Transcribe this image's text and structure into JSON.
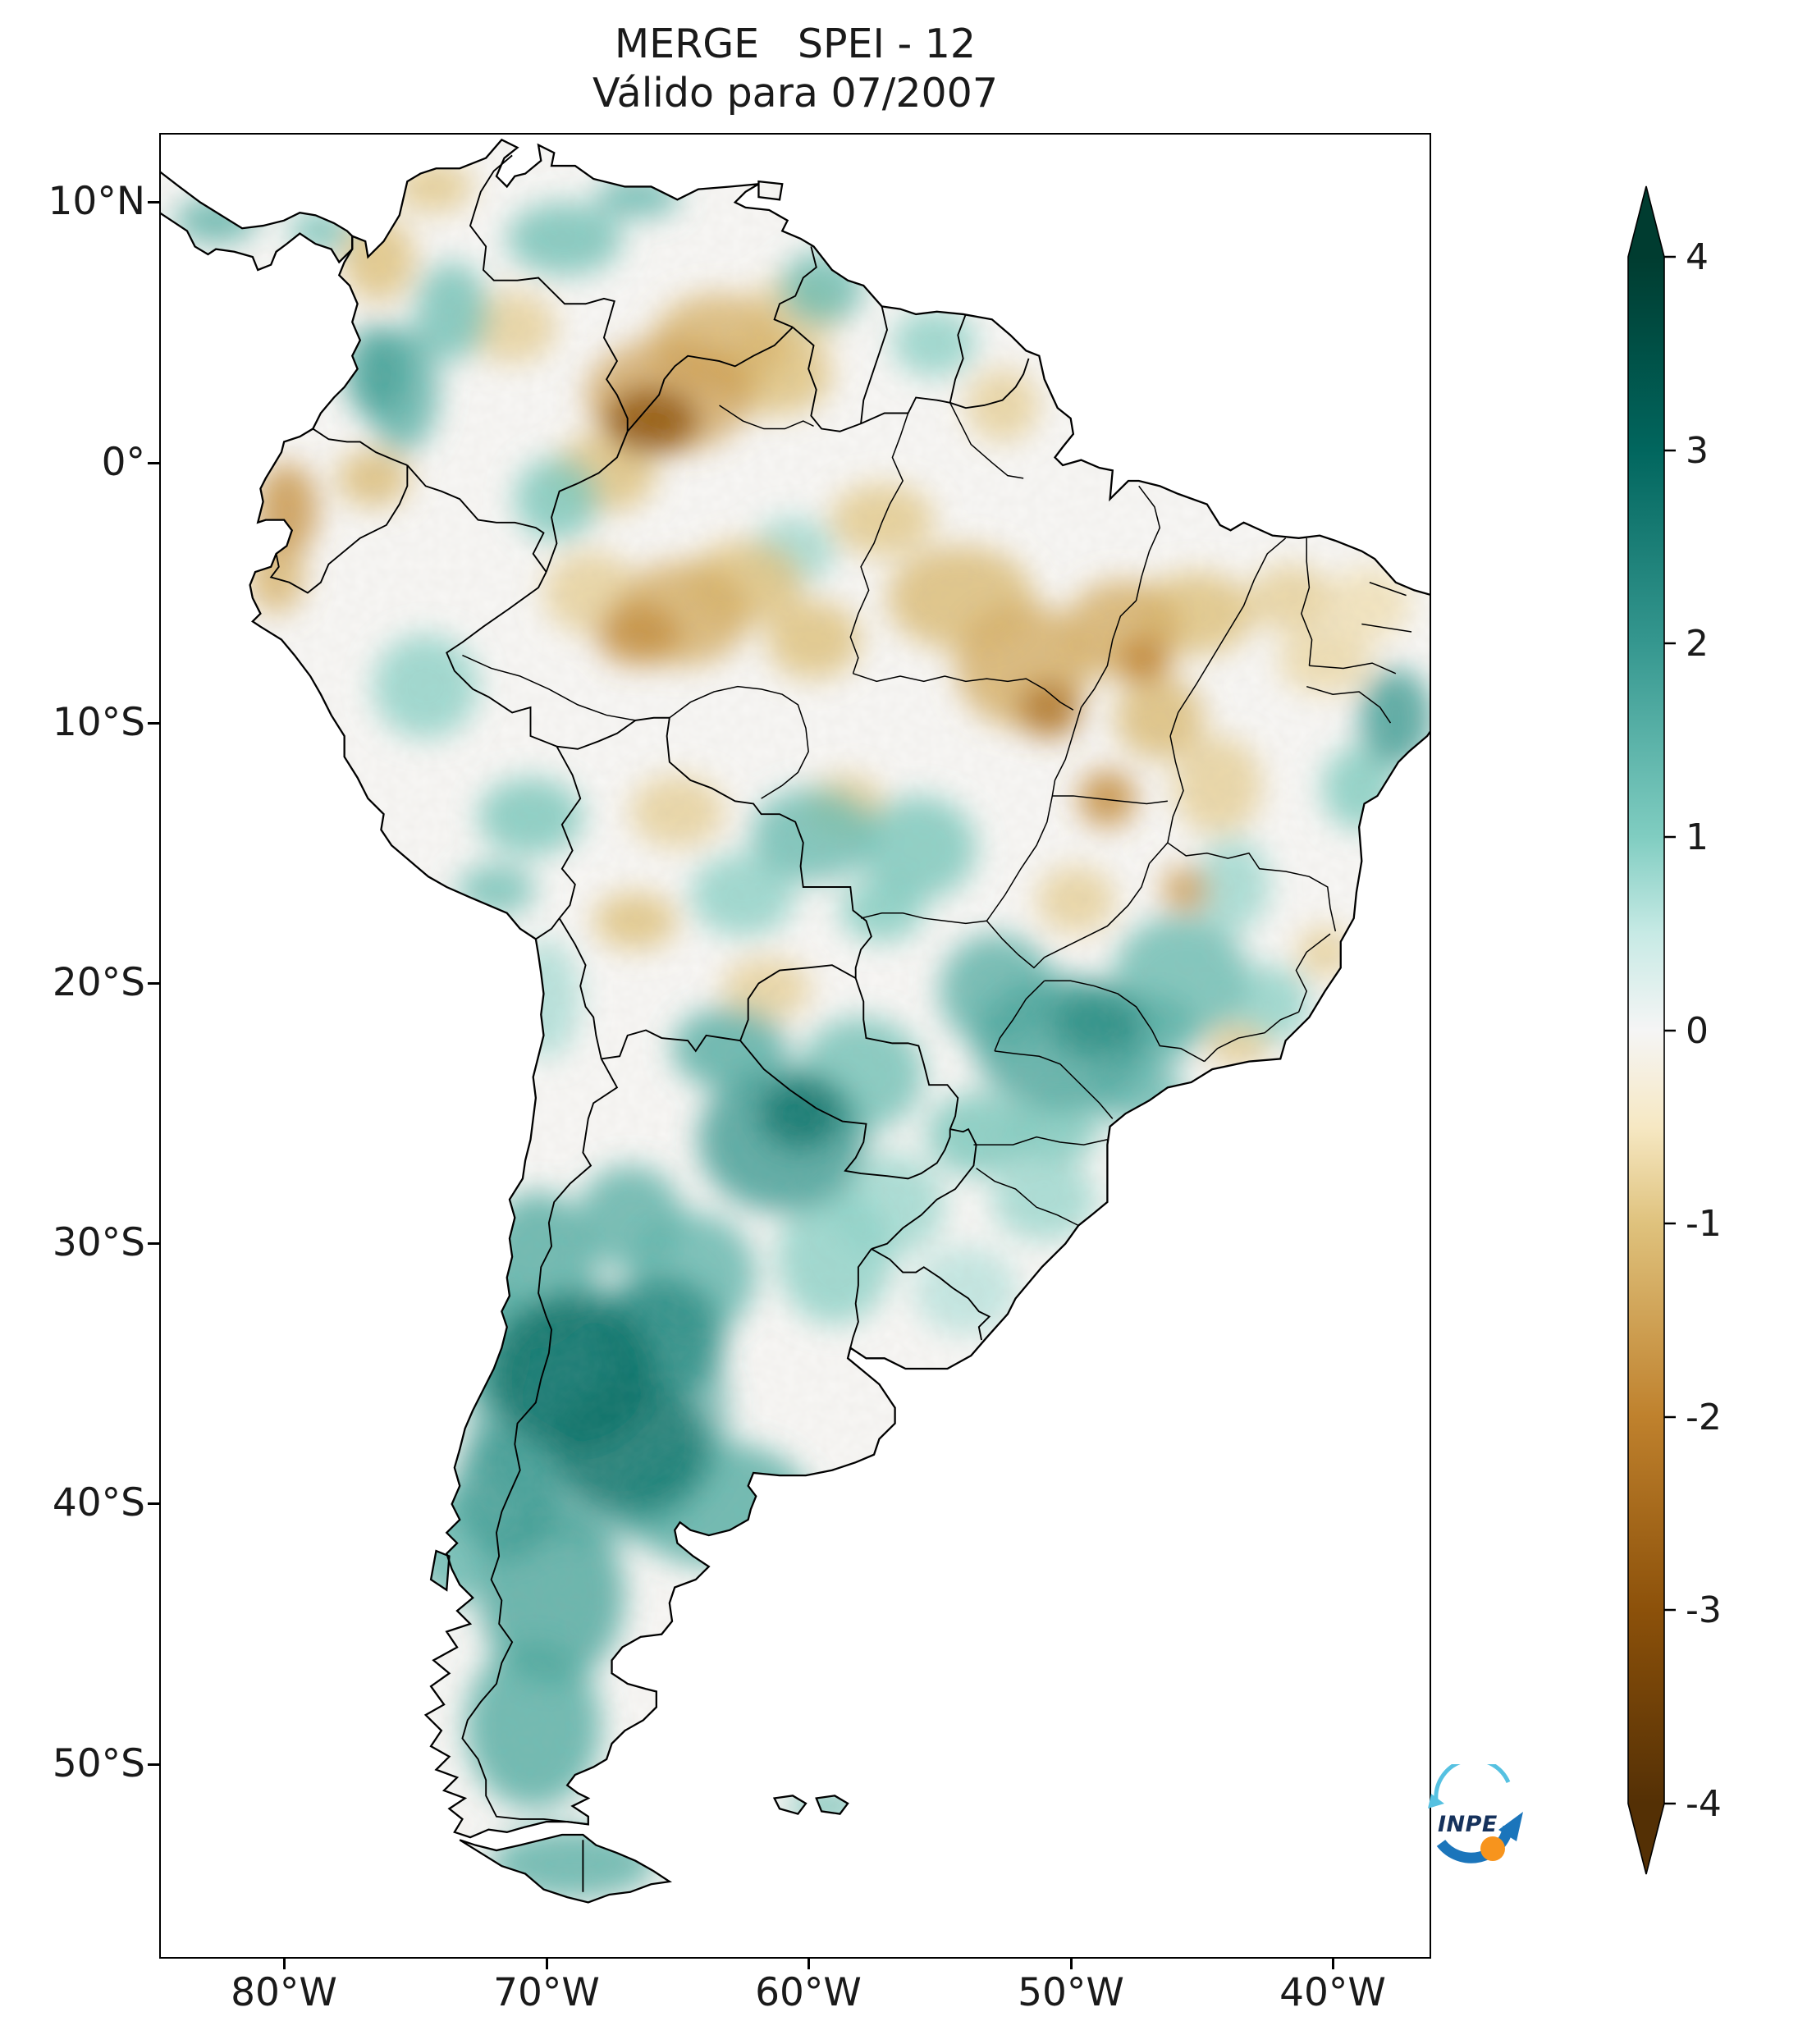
{
  "title": {
    "line1": "MERGE   SPEI - 12",
    "line2": "Válido para 07/2007"
  },
  "axes": {
    "lat_ticks": [
      {
        "label": "10°N"
      },
      {
        "label": "0°"
      },
      {
        "label": "10°S"
      },
      {
        "label": "20°S"
      },
      {
        "label": "30°S"
      },
      {
        "label": "40°S"
      },
      {
        "label": "50°S"
      }
    ],
    "lon_ticks": [
      {
        "label": "80°W"
      },
      {
        "label": "70°W"
      },
      {
        "label": "60°W"
      },
      {
        "label": "50°W"
      },
      {
        "label": "40°W"
      }
    ]
  },
  "colorbar": {
    "extend": "both",
    "ticks": [
      {
        "v": 4,
        "label": "4"
      },
      {
        "v": 3,
        "label": "3"
      },
      {
        "v": 2,
        "label": "2"
      },
      {
        "v": 1,
        "label": "1"
      },
      {
        "v": 0,
        "label": "0"
      },
      {
        "v": -1,
        "label": "-1"
      },
      {
        "v": -2,
        "label": "-2"
      },
      {
        "v": -3,
        "label": "-3"
      },
      {
        "v": -4,
        "label": "-4"
      }
    ]
  },
  "logo": {
    "text": "INPE",
    "light_blue": "#56c1e1",
    "blue": "#1b75bb",
    "orange": "#f7941d",
    "navy": "#16325c"
  },
  "chart_data": {
    "type": "heatmap",
    "map": "South America",
    "product": "MERGE",
    "index": "SPEI-12",
    "title": "MERGE   SPEI - 12",
    "subtitle": "Válido para 07/2007",
    "date": "07/2007",
    "lon_range": [
      -84.7,
      -36.3
    ],
    "lat_range": [
      -57.4,
      12.6
    ],
    "colorbar_range": [
      -4,
      4
    ],
    "colormap": {
      "name": "BrBG",
      "stops": [
        {
          "v": -4,
          "c": "#543005"
        },
        {
          "v": -3,
          "c": "#8c510a"
        },
        {
          "v": -2,
          "c": "#bf812d"
        },
        {
          "v": -1,
          "c": "#dfc27d"
        },
        {
          "v": -0.5,
          "c": "#f6e8c3"
        },
        {
          "v": 0,
          "c": "#f5f5f5"
        },
        {
          "v": 0.5,
          "c": "#c7eae5"
        },
        {
          "v": 1,
          "c": "#80cdc1"
        },
        {
          "v": 2,
          "c": "#35978f"
        },
        {
          "v": 3,
          "c": "#01665e"
        },
        {
          "v": 4,
          "c": "#003c30"
        }
      ]
    },
    "anomalies_format": [
      "lon",
      "lat",
      "rx_deg",
      "ry_deg",
      "spei",
      "opacity_optional"
    ],
    "anomalies": [
      [
        -68.0,
        -36.5,
        5.0,
        5.0,
        1.8,
        0.6
      ],
      [
        -69.0,
        -35.0,
        3.2,
        3.0,
        2.8
      ],
      [
        -66.8,
        -37.8,
        3.0,
        2.6,
        2.6
      ],
      [
        -70.3,
        -31.0,
        2.2,
        3.0,
        1.6
      ],
      [
        -65.6,
        -33.6,
        2.4,
        2.4,
        2.2
      ],
      [
        -64.4,
        -31.2,
        2.4,
        2.4,
        1.4
      ],
      [
        -63.5,
        -40.0,
        3.6,
        2.4,
        1.6
      ],
      [
        -69.8,
        -43.5,
        2.8,
        3.4,
        1.7
      ],
      [
        -70.5,
        -48.5,
        2.6,
        3.2,
        1.6
      ],
      [
        -71.5,
        -39.5,
        2.0,
        2.6,
        1.9
      ],
      [
        -69.0,
        -53.8,
        3.2,
        1.4,
        1.5
      ],
      [
        -72.0,
        -34.0,
        1.4,
        2.4,
        1.6
      ],
      [
        -61.0,
        -26.0,
        3.2,
        2.8,
        1.9
      ],
      [
        -60.3,
        -25.0,
        1.6,
        1.4,
        2.7
      ],
      [
        -63.0,
        -22.5,
        2.2,
        1.6,
        1.6
      ],
      [
        -58.0,
        -23.5,
        2.4,
        2.2,
        1.2
      ],
      [
        -59.0,
        -30.5,
        2.2,
        2.6,
        0.9
      ],
      [
        -57.0,
        -28.5,
        2.2,
        2.0,
        0.8
      ],
      [
        -54.0,
        -31.8,
        2.0,
        1.7,
        0.6
      ],
      [
        -50.3,
        -22.3,
        3.4,
        2.6,
        1.7
      ],
      [
        -49.0,
        -21.5,
        1.8,
        1.4,
        2.2
      ],
      [
        -52.8,
        -20.3,
        2.2,
        2.2,
        1.5
      ],
      [
        -46.8,
        -21.8,
        1.6,
        1.4,
        1.5
      ],
      [
        -45.8,
        -19.8,
        2.6,
        2.4,
        1.3
      ],
      [
        -47.5,
        -24.2,
        1.8,
        1.2,
        1.4
      ],
      [
        -53.5,
        -25.8,
        2.0,
        1.6,
        1.1
      ],
      [
        -50.6,
        -25.6,
        1.7,
        1.3,
        1.1
      ],
      [
        -51.0,
        -28.3,
        2.0,
        1.6,
        0.8
      ],
      [
        -55.8,
        -14.8,
        2.2,
        2.0,
        1.1
      ],
      [
        -59.8,
        -14.3,
        2.4,
        1.8,
        1.3
      ],
      [
        -62.5,
        -16.6,
        2.0,
        1.6,
        0.9
      ],
      [
        -57.2,
        -17.2,
        1.6,
        1.2,
        1.0
      ],
      [
        -37.6,
        -9.8,
        1.4,
        1.9,
        1.9
      ],
      [
        -39.0,
        -12.5,
        1.4,
        1.6,
        1.0
      ],
      [
        -43.8,
        -16.2,
        1.4,
        1.8,
        0.8
      ],
      [
        -42.4,
        -20.8,
        1.5,
        1.5,
        0.9
      ],
      [
        -75.5,
        2.8,
        1.4,
        2.4,
        1.5
      ],
      [
        -76.5,
        3.5,
        1.2,
        1.8,
        1.8
      ],
      [
        -73.6,
        5.8,
        1.4,
        1.9,
        1.2
      ],
      [
        -69.3,
        8.6,
        2.2,
        1.4,
        1.2
      ],
      [
        -66.5,
        10.2,
        1.6,
        0.8,
        1.4
      ],
      [
        -59.5,
        6.7,
        1.6,
        1.4,
        1.3
      ],
      [
        -55.2,
        4.6,
        1.6,
        1.3,
        0.9
      ],
      [
        -74.6,
        -8.6,
        2.0,
        2.0,
        0.9
      ],
      [
        -70.6,
        -13.6,
        2.0,
        1.5,
        1.1
      ],
      [
        -71.9,
        -16.4,
        1.5,
        1.0,
        1.2
      ],
      [
        -69.6,
        -1.4,
        1.6,
        1.6,
        1.1
      ],
      [
        -60.6,
        -3.4,
        1.6,
        1.3,
        0.8
      ],
      [
        -73.6,
        -41.6,
        1.6,
        2.2,
        1.4
      ],
      [
        -70.0,
        -20.6,
        1.3,
        2.3,
        0.7
      ],
      [
        -66.8,
        -29.0,
        2.0,
        2.0,
        1.5
      ],
      [
        -82.6,
        9.3,
        1.6,
        0.9,
        1.5
      ],
      [
        -78.6,
        8.9,
        1.2,
        0.8,
        1.2
      ],
      [
        -59.3,
        -51.6,
        1.5,
        0.7,
        1.2
      ],
      [
        -65.3,
        2.6,
        3.2,
        2.2,
        -1.6,
        0.7
      ],
      [
        -66.0,
        1.6,
        1.8,
        1.3,
        -3.0
      ],
      [
        -63.4,
        4.6,
        2.6,
        1.9,
        -1.2
      ],
      [
        -61.3,
        3.4,
        2.2,
        1.6,
        -1.0
      ],
      [
        -60.5,
        5.8,
        1.8,
        1.4,
        -0.8
      ],
      [
        -67.8,
        -0.4,
        2.0,
        1.5,
        -1.0
      ],
      [
        -64.8,
        -5.8,
        2.6,
        2.0,
        -1.3
      ],
      [
        -66.5,
        -6.6,
        1.6,
        1.2,
        -1.8
      ],
      [
        -62.4,
        -4.6,
        2.2,
        1.6,
        -1.0
      ],
      [
        -59.8,
        -6.8,
        1.8,
        1.5,
        -1.0
      ],
      [
        -57.2,
        -2.2,
        2.0,
        1.4,
        -0.9
      ],
      [
        -54.2,
        -5.2,
        2.8,
        2.0,
        -1.1
      ],
      [
        -51.8,
        -7.8,
        2.6,
        2.4,
        -1.3
      ],
      [
        -50.8,
        -9.5,
        1.2,
        1.1,
        -2.3
      ],
      [
        -48.0,
        -6.4,
        2.2,
        1.9,
        -1.3
      ],
      [
        -47.2,
        -7.6,
        1.0,
        0.9,
        -2.0
      ],
      [
        -45.2,
        -5.8,
        2.2,
        1.6,
        -1.0
      ],
      [
        -48.6,
        -12.9,
        1.1,
        1.1,
        -1.9
      ],
      [
        -45.6,
        -16.4,
        0.9,
        0.9,
        -1.6
      ],
      [
        -46.6,
        -9.8,
        1.7,
        1.6,
        -1.1
      ],
      [
        -41.6,
        -5.2,
        1.6,
        1.3,
        -0.8
      ],
      [
        -40.3,
        -7.6,
        1.8,
        1.3,
        -0.7
      ],
      [
        -44.4,
        -12.4,
        1.7,
        1.9,
        -0.8
      ],
      [
        -38.6,
        -5.4,
        1.6,
        1.4,
        -0.6
      ],
      [
        -79.9,
        -1.8,
        1.2,
        1.8,
        -1.7
      ],
      [
        -80.3,
        -4.4,
        1.1,
        1.4,
        -1.2
      ],
      [
        -76.6,
        -0.6,
        1.4,
        1.1,
        -1.1
      ],
      [
        -76.4,
        7.8,
        1.4,
        1.6,
        -1.0
      ],
      [
        -74.3,
        10.6,
        1.5,
        1.0,
        -0.9
      ],
      [
        -71.3,
        5.2,
        1.7,
        1.4,
        -0.8
      ],
      [
        -68.3,
        -5.0,
        1.8,
        1.6,
        -0.8
      ],
      [
        -65.0,
        -13.4,
        1.8,
        1.4,
        -0.8
      ],
      [
        -66.6,
        -17.6,
        1.6,
        1.1,
        -1.0
      ],
      [
        -61.6,
        -20.2,
        1.7,
        1.2,
        -0.8
      ],
      [
        -58.6,
        -13.2,
        1.5,
        1.2,
        -0.9
      ],
      [
        -49.8,
        -16.8,
        1.5,
        1.3,
        -0.8
      ],
      [
        -40.3,
        -18.8,
        1.1,
        1.0,
        -0.8
      ],
      [
        -43.6,
        -22.4,
        1.2,
        0.8,
        -0.9
      ],
      [
        -52.6,
        2.2,
        1.4,
        1.4,
        -0.8
      ]
    ]
  }
}
